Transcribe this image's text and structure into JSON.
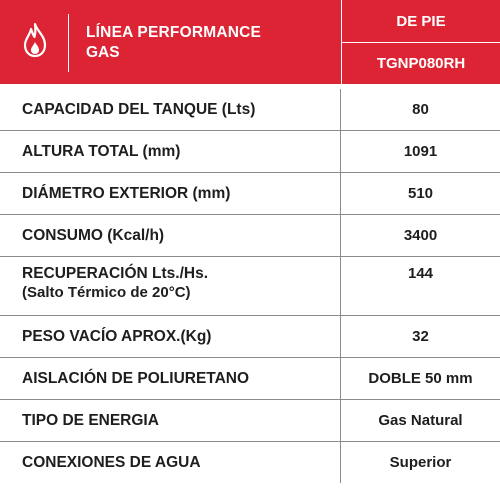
{
  "header": {
    "line1": "LÍNEA PERFORMANCE",
    "line2": "GAS",
    "type": "DE PIE",
    "model": "TGNP080RH",
    "icon": "flame-icon",
    "accent": "#dc2434"
  },
  "rows": [
    {
      "label": "CAPACIDAD DEL TANQUE (Lts)",
      "value": "80"
    },
    {
      "label": "ALTURA TOTAL (mm)",
      "value": "1091"
    },
    {
      "label": "DIÁMETRO EXTERIOR (mm)",
      "value": "510"
    },
    {
      "label": "CONSUMO (Kcal/h)",
      "value": "3400"
    },
    {
      "label": "RECUPERACIÓN Lts./Hs.",
      "label2": "(Salto Térmico de 20°C)",
      "value": "144"
    },
    {
      "label": "PESO VACÍO APROX.(Kg)",
      "value": "32"
    },
    {
      "label": "AISLACIÓN DE POLIURETANO",
      "value": "DOBLE 50 mm"
    },
    {
      "label": "TIPO DE ENERGIA",
      "value": "Gas Natural"
    },
    {
      "label": "CONEXIONES DE AGUA",
      "value": "Superior"
    }
  ]
}
